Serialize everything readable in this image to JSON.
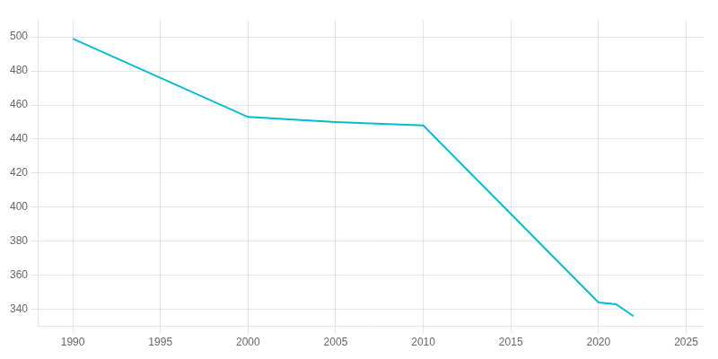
{
  "chart_data": {
    "type": "line",
    "x": [
      1990,
      2000,
      2005,
      2010,
      2020,
      2021,
      2022
    ],
    "values": [
      499,
      453,
      450,
      448,
      344,
      343,
      336
    ],
    "color": "#00BCD4",
    "xlim": [
      1988,
      2026
    ],
    "ylim": [
      330,
      510
    ],
    "xticks": [
      1990,
      1995,
      2000,
      2005,
      2010,
      2015,
      2020,
      2025
    ],
    "yticks": [
      340,
      360,
      380,
      400,
      420,
      440,
      460,
      480,
      500
    ],
    "grid": true
  }
}
